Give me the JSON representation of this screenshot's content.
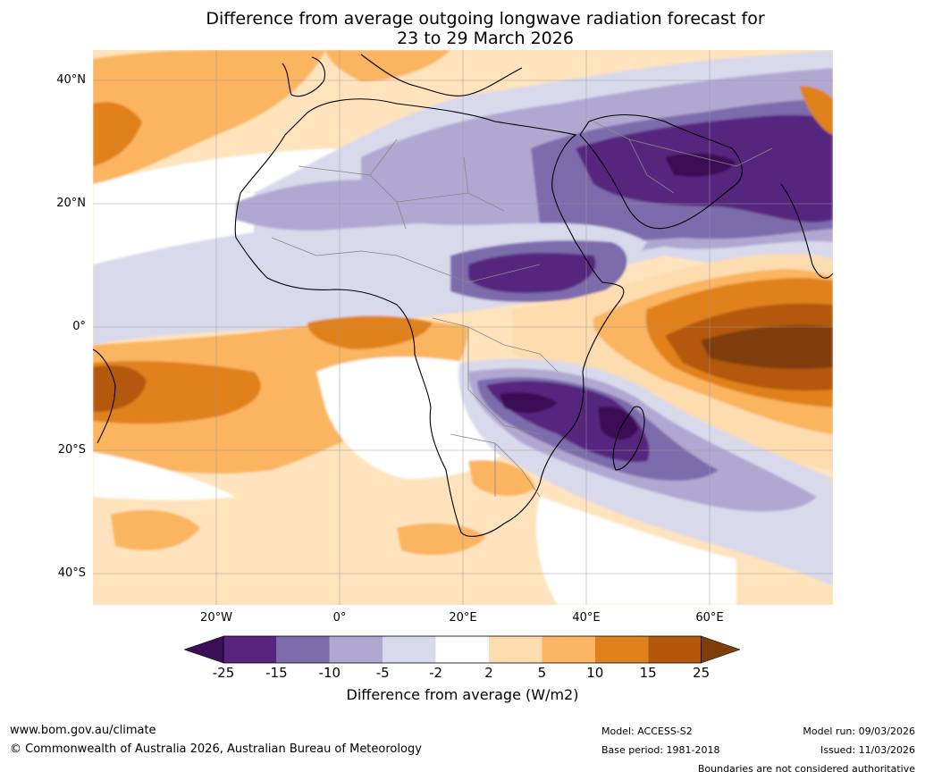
{
  "title": {
    "line1": "Difference from average outgoing longwave radiation forecast for",
    "line2": "23 to 29 March 2026"
  },
  "axes": {
    "latitude_labels": [
      "40°N",
      "20°N",
      "0°",
      "20°S",
      "40°S"
    ],
    "longitude_labels": [
      "20°W",
      "0°",
      "20°E",
      "40°E",
      "60°E"
    ]
  },
  "colorbar": {
    "title": "Difference from average (W/m2)",
    "tick_labels": [
      "-25",
      "-15",
      "-10",
      "-5",
      "-2",
      "2",
      "5",
      "10",
      "15",
      "25"
    ],
    "colors": [
      "#3a0f55",
      "#56267f",
      "#7d6cab",
      "#b1a8d2",
      "#d9d9ec",
      "#ffffff",
      "#fddcaf",
      "#fbb461",
      "#e0811c",
      "#b3580b",
      "#7f3d09"
    ]
  },
  "footer": {
    "website": "www.bom.gov.au/climate",
    "copyright": "© Commonwealth of Australia 2026, Australian Bureau of Meteorology",
    "model": "Model: ACCESS-S2",
    "base_period": "Base period: 1981-2018",
    "model_run": "Model run: 09/03/2026",
    "issued": "Issued: 11/03/2026",
    "disclaimer": "Boundaries are not considered authoritative"
  }
}
